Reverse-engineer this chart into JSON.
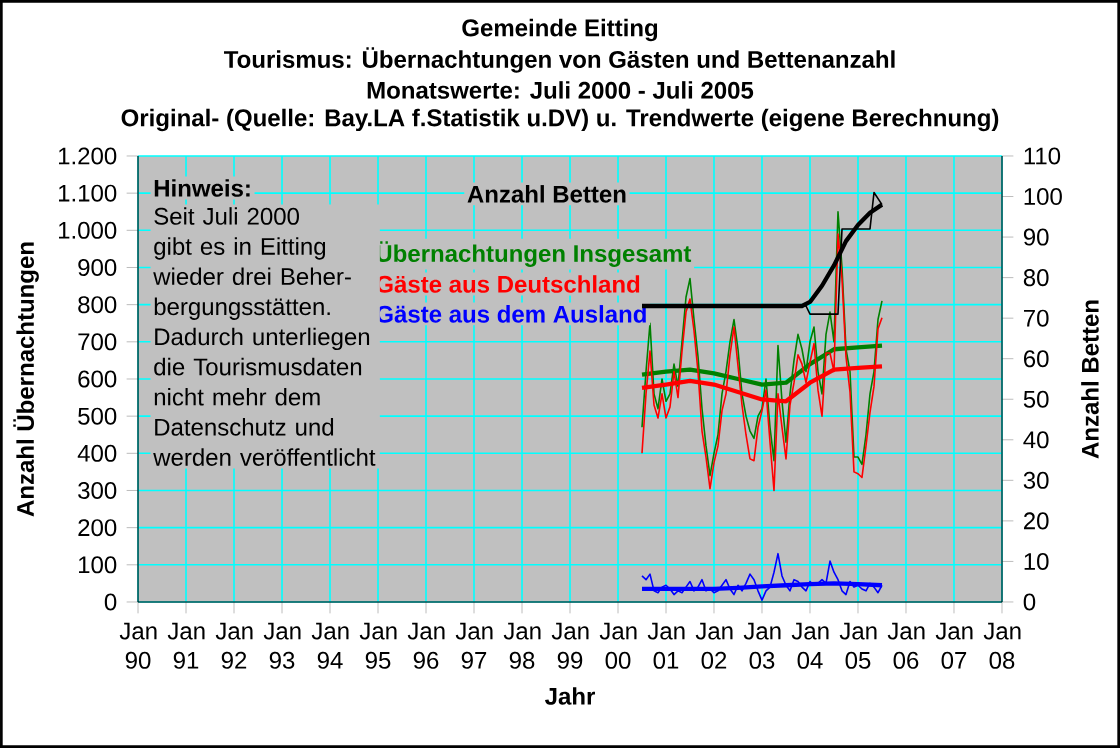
{
  "chart_data": {
    "type": "line",
    "title": "Gemeinde Eitting",
    "subtitle": "Tourismus: Übernachtungen von Gästen und Bettenanzahl",
    "annotations": [
      "Monatswerte: Juli 2000 - Juli  2005",
      "Original- (Quelle: Bay.LA f.Statistik u.DV) u. Trendwerte (eigene Berechnung)",
      "Hinweis:",
      "Seit Juli 2000 gibt es in Eitting wieder drei Beher-bergungsstätten. Dadurch unterliegen die Tourismusdaten nicht mehr dem Datenschutz und werden veröffentlicht"
    ],
    "xlabel": "Jahr",
    "ylabel": "Anzahl Übernachtungen",
    "y2label": "Anzahl Betten",
    "x": [
      "2000-07",
      "2000-08",
      "2000-09",
      "2000-10",
      "2000-11",
      "2000-12",
      "2001-01",
      "2001-02",
      "2001-03",
      "2001-04",
      "2001-05",
      "2001-06",
      "2001-07",
      "2001-08",
      "2001-09",
      "2001-10",
      "2001-11",
      "2001-12",
      "2002-01",
      "2002-02",
      "2002-03",
      "2002-04",
      "2002-05",
      "2002-06",
      "2002-07",
      "2002-08",
      "2002-09",
      "2002-10",
      "2002-11",
      "2002-12",
      "2003-01",
      "2003-02",
      "2003-03",
      "2003-04",
      "2003-05",
      "2003-06",
      "2003-07",
      "2003-08",
      "2003-09",
      "2003-10",
      "2003-11",
      "2003-12",
      "2004-01",
      "2004-02",
      "2004-03",
      "2004-04",
      "2004-05",
      "2004-06",
      "2004-07",
      "2004-08",
      "2004-09",
      "2004-10",
      "2004-11",
      "2004-12",
      "2005-01",
      "2005-02",
      "2005-03",
      "2005-04",
      "2005-05",
      "2005-06",
      "2005-07"
    ],
    "series": [
      {
        "name": "Übernachtungen Insgesamt",
        "color": "#008000",
        "values": [
          470,
          620,
          750,
          560,
          520,
          600,
          540,
          560,
          640,
          580,
          700,
          820,
          870,
          760,
          660,
          520,
          420,
          340,
          400,
          450,
          560,
          620,
          700,
          760,
          680,
          560,
          500,
          460,
          440,
          500,
          520,
          600,
          470,
          380,
          690,
          540,
          430,
          560,
          650,
          720,
          680,
          620,
          700,
          740,
          620,
          560,
          720,
          780,
          700,
          1050,
          900,
          680,
          620,
          390,
          390,
          370,
          450,
          560,
          620,
          760,
          810
        ]
      },
      {
        "color": "#008000",
        "x": [
          "2000-07",
          "2001-01",
          "2001-07",
          "2002-01",
          "2002-07",
          "2003-01",
          "2003-07",
          "2004-01",
          "2004-07",
          "2005-01",
          "2005-07"
        ],
        "values": [
          612,
          620,
          625,
          615,
          600,
          585,
          590,
          640,
          680,
          685,
          690
        ]
      },
      {
        "name": "Gäste aus Deutschland",
        "color": "#ff0000",
        "values": [
          400,
          560,
          675,
          530,
          495,
          560,
          495,
          525,
          620,
          550,
          675,
          780,
          815,
          730,
          620,
          460,
          390,
          305,
          375,
          420,
          515,
          560,
          665,
          740,
          635,
          530,
          450,
          385,
          380,
          470,
          515,
          570,
          430,
          300,
          560,
          470,
          385,
          530,
          590,
          665,
          640,
          590,
          645,
          695,
          570,
          500,
          670,
          670,
          620,
          990,
          870,
          660,
          565,
          350,
          345,
          335,
          420,
          510,
          580,
          735,
          765
        ]
      },
      {
        "color": "#ff0000",
        "x": [
          "2000-07",
          "2001-01",
          "2001-07",
          "2002-01",
          "2002-07",
          "2003-01",
          "2003-07",
          "2004-01",
          "2004-07",
          "2005-01",
          "2005-07"
        ],
        "values": [
          576,
          585,
          595,
          585,
          565,
          545,
          540,
          590,
          625,
          630,
          634
        ]
      },
      {
        "name": "Gäste aus dem Ausland",
        "color": "#0000ff",
        "values": [
          70,
          60,
          75,
          30,
          25,
          40,
          45,
          35,
          20,
          30,
          25,
          40,
          55,
          30,
          40,
          60,
          30,
          35,
          25,
          30,
          45,
          60,
          35,
          20,
          45,
          30,
          50,
          75,
          60,
          30,
          5,
          30,
          40,
          80,
          130,
          70,
          45,
          30,
          60,
          55,
          40,
          30,
          55,
          45,
          50,
          60,
          50,
          110,
          80,
          60,
          30,
          20,
          55,
          40,
          45,
          35,
          30,
          50,
          40,
          25,
          45
        ]
      },
      {
        "color": "#0000ff",
        "x": [
          "2000-07",
          "2001-01",
          "2001-07",
          "2002-01",
          "2002-07",
          "2003-01",
          "2003-07",
          "2004-01",
          "2004-07",
          "2005-01",
          "2005-07"
        ],
        "values": [
          35,
          35,
          35,
          35,
          38,
          42,
          45,
          48,
          50,
          48,
          45
        ]
      },
      {
        "name": "Anzahl Betten",
        "color": "#000000",
        "axis": "y2",
        "x": [
          "2000-07",
          "2003-12",
          "2004-01",
          "2004-08",
          "2004-09",
          "2005-04",
          "2005-05",
          "2005-07"
        ],
        "values": [
          73,
          73,
          71,
          71,
          92,
          92,
          101,
          98
        ]
      },
      {
        "color": "#000000",
        "axis": "y2",
        "x": [
          "2000-07",
          "2003-11",
          "2004-01",
          "2004-04",
          "2004-07",
          "2004-10",
          "2005-01",
          "2005-04",
          "2005-07"
        ],
        "values": [
          73,
          73,
          74,
          78,
          83,
          89,
          93,
          96,
          98
        ]
      }
    ],
    "xlim": [
      "1990-01",
      "2008-01"
    ],
    "xticks": [
      {
        "value": "1990-01",
        "label": "Jan 90"
      },
      {
        "value": "1991-01",
        "label": "Jan 91"
      },
      {
        "value": "1992-01",
        "label": "Jan 92"
      },
      {
        "value": "1993-01",
        "label": "Jan 93"
      },
      {
        "value": "1994-01",
        "label": "Jan 94"
      },
      {
        "value": "1995-01",
        "label": "Jan 95"
      },
      {
        "value": "1996-01",
        "label": "Jan 96"
      },
      {
        "value": "1997-01",
        "label": "Jan 97"
      },
      {
        "value": "1998-01",
        "label": "Jan 98"
      },
      {
        "value": "1999-01",
        "label": "Jan 99"
      },
      {
        "value": "2000-01",
        "label": "Jan 00"
      },
      {
        "value": "2001-01",
        "label": "Jan 01"
      },
      {
        "value": "2002-01",
        "label": "Jan 02"
      },
      {
        "value": "2003-01",
        "label": "Jan 03"
      },
      {
        "value": "2004-01",
        "label": "Jan 04"
      },
      {
        "value": "2005-01",
        "label": "Jan 05"
      },
      {
        "value": "2006-01",
        "label": "Jan 06"
      },
      {
        "value": "2007-01",
        "label": "Jan 07"
      },
      {
        "value": "2008-01",
        "label": "Jan 08"
      }
    ],
    "ylim": [
      0,
      1200
    ],
    "yticks": [
      0,
      100,
      200,
      300,
      400,
      500,
      600,
      700,
      800,
      900,
      {
        "value": 1000,
        "label": "1.000"
      },
      {
        "value": 1100,
        "label": "1.100"
      },
      {
        "value": 1200,
        "label": "1.200"
      }
    ],
    "y2lim": [
      0,
      110
    ],
    "y2ticks": [
      0,
      10,
      20,
      30,
      40,
      50,
      60,
      70,
      80,
      90,
      100,
      110
    ],
    "grid": true,
    "marker": "none",
    "line_style": "solid"
  }
}
